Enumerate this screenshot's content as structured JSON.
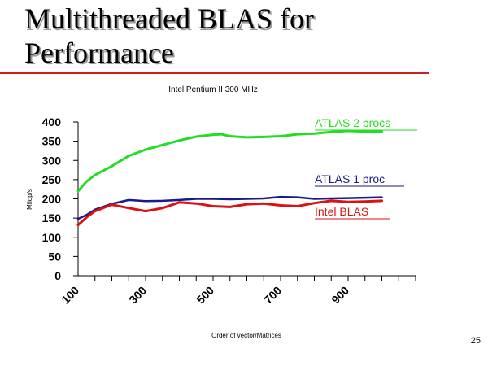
{
  "slide": {
    "title": "Multithreaded BLAS for\nPerformance",
    "page_number": "25"
  },
  "colors": {
    "title_rule": "#d11f1f",
    "atlas_2": "#22dd22",
    "atlas_1": "#1a1a88",
    "intel": "#dd1111"
  },
  "chart_data": {
    "type": "line",
    "title": "Intel Pentium II 300 MHz",
    "xlabel": "Order of vector/Matrices",
    "ylabel": "Mflop/s",
    "xlim": [
      100,
      1100
    ],
    "ylim": [
      0,
      400
    ],
    "xticks": [
      100,
      300,
      500,
      700,
      900
    ],
    "xtick_labels": [
      "100",
      "300",
      "500",
      "700",
      "900"
    ],
    "yticks": [
      0,
      50,
      100,
      150,
      200,
      250,
      300,
      350,
      400
    ],
    "ytick_labels": [
      "0",
      "50",
      "100",
      "150",
      "200",
      "250",
      "300",
      "350",
      "400"
    ],
    "grid": false,
    "legend_placement": "right, labels next to line ends",
    "series": [
      {
        "name": "ATLAS 2 procs",
        "color": "#22dd22",
        "x": [
          100,
          125,
          150,
          200,
          250,
          300,
          350,
          400,
          450,
          500,
          525,
          550,
          600,
          650,
          700,
          750,
          800,
          850,
          900,
          950,
          1000
        ],
        "y": [
          220,
          245,
          262,
          285,
          312,
          328,
          340,
          352,
          362,
          367,
          368,
          363,
          360,
          361,
          363,
          368,
          370,
          374,
          377,
          375,
          375
        ]
      },
      {
        "name": "ATLAS 1 proc",
        "color": "#1a1a88",
        "x": [
          100,
          125,
          150,
          200,
          250,
          300,
          350,
          400,
          450,
          500,
          550,
          600,
          650,
          700,
          750,
          800,
          850,
          900,
          950,
          1000
        ],
        "y": [
          148,
          158,
          172,
          187,
          197,
          194,
          195,
          197,
          200,
          200,
          199,
          200,
          201,
          205,
          204,
          200,
          201,
          202,
          203,
          204
        ]
      },
      {
        "name": "Intel BLAS",
        "color": "#dd1111",
        "x": [
          100,
          125,
          150,
          200,
          250,
          300,
          350,
          400,
          450,
          500,
          550,
          600,
          650,
          700,
          750,
          800,
          850,
          900,
          950,
          1000
        ],
        "y": [
          132,
          152,
          168,
          185,
          176,
          168,
          176,
          191,
          188,
          181,
          179,
          186,
          188,
          183,
          181,
          189,
          195,
          192,
          193,
          195
        ]
      }
    ]
  }
}
